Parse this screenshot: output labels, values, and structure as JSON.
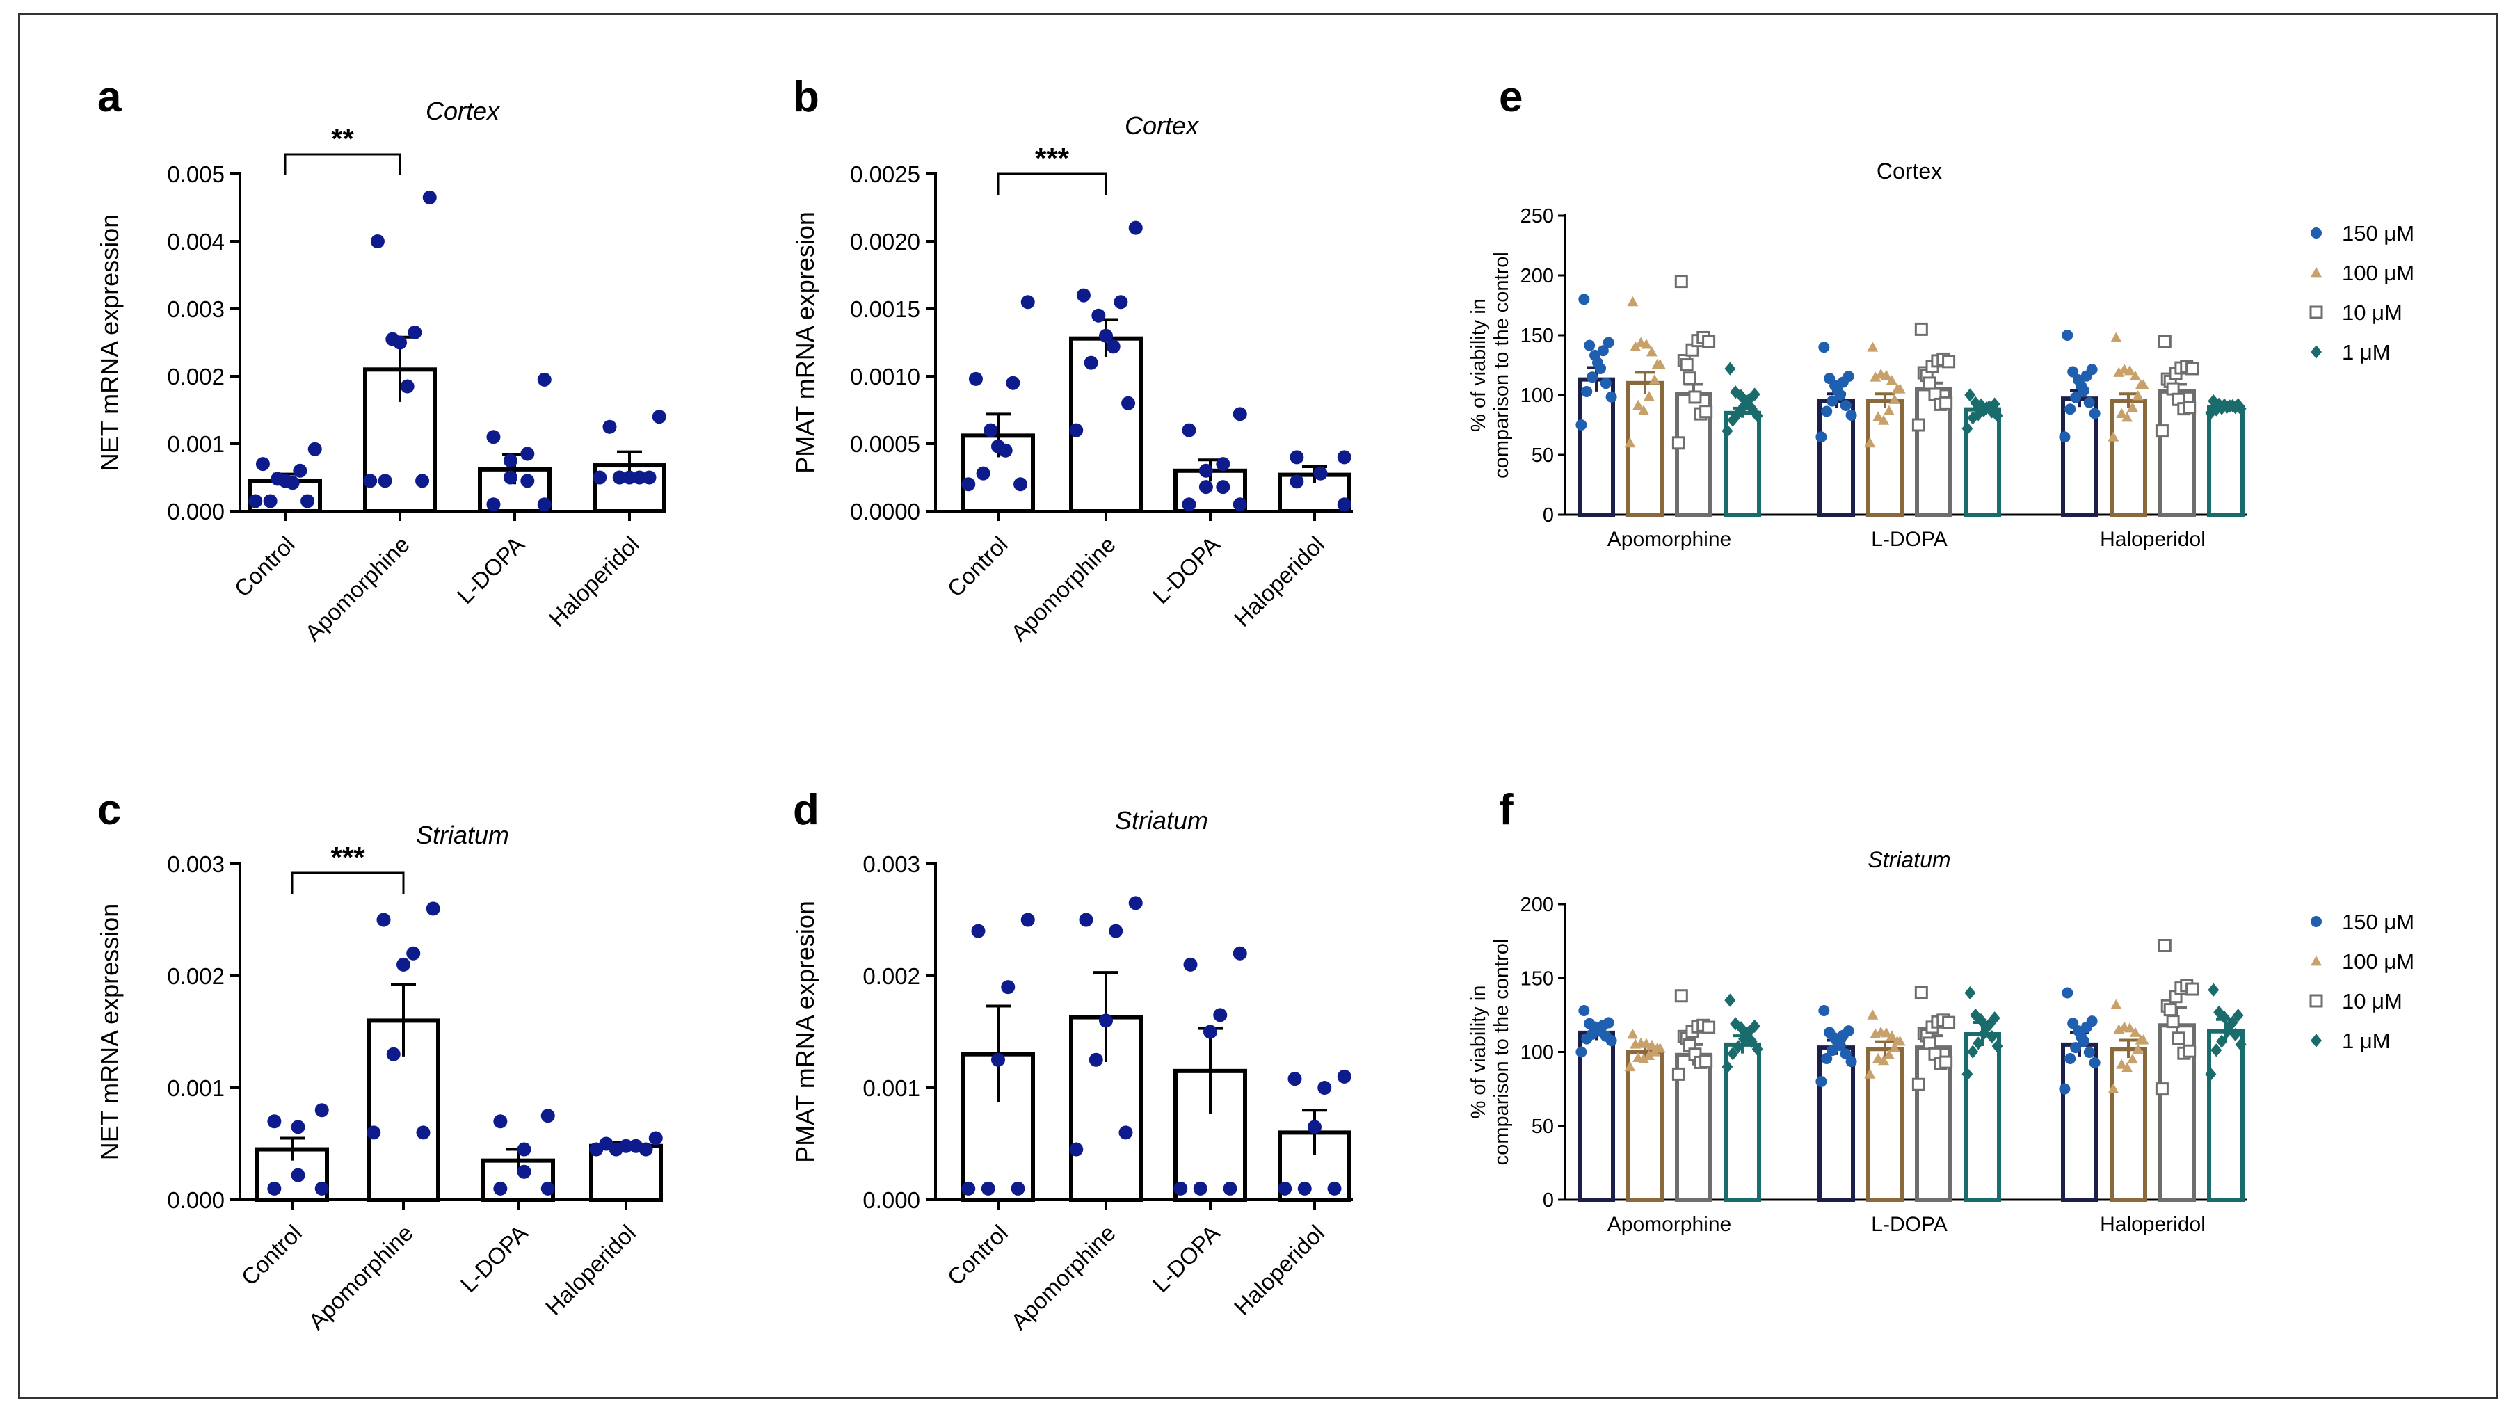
{
  "colors": {
    "dot": "#0d1b8c",
    "dose_150": "#1f5fb0",
    "dose_100": "#c8a06a",
    "dose_10": "#6e6e6e",
    "dose_1": "#1a6b6b",
    "bar_150": "#1b1f4a",
    "bar_100": "#8a6a3c",
    "bar_10": "#6e6e6e",
    "bar_1": "#1a6b6b"
  },
  "chart_data": [
    {
      "id": "a",
      "panel_label": "a",
      "type": "bar",
      "title": "Cortex",
      "ylabel": "NET mRNA expression",
      "ylim": [
        0,
        0.005
      ],
      "yticks": [
        "0.000",
        "0.001",
        "0.002",
        "0.003",
        "0.004",
        "0.005"
      ],
      "categories": [
        "Control",
        "Apomorphine",
        "L-DOPA",
        "Haloperidol"
      ],
      "means": [
        0.00045,
        0.0021,
        0.00062,
        0.00068
      ],
      "sems": [
        0.0001,
        0.00048,
        0.00022,
        0.0002
      ],
      "points": [
        [
          0.00092,
          0.0007,
          0.0006,
          0.00048,
          0.00045,
          0.00042,
          0.00015,
          0.00015,
          0.00015
        ],
        [
          0.00465,
          0.004,
          0.00265,
          0.00255,
          0.0025,
          0.00185,
          0.00045,
          0.00045,
          0.00045
        ],
        [
          0.00195,
          0.0011,
          0.00085,
          0.00075,
          0.0005,
          0.00045,
          0.0001,
          0.0001
        ],
        [
          0.0014,
          0.00125,
          0.0005,
          0.0005,
          0.0005,
          0.0005,
          0.0005
        ]
      ],
      "significance": {
        "from": 0,
        "to": 1,
        "label": "**"
      }
    },
    {
      "id": "b",
      "panel_label": "b",
      "type": "bar",
      "title": "Cortex",
      "ylabel": "PMAT mRNA expresion",
      "ylim": [
        0,
        0.0025
      ],
      "yticks": [
        "0.0000",
        "0.0005",
        "0.0010",
        "0.0015",
        "0.0020",
        "0.0025"
      ],
      "categories": [
        "Control",
        "Apomorphine",
        "L-DOPA",
        "Haloperidol"
      ],
      "means": [
        0.00056,
        0.00128,
        0.0003,
        0.00027
      ],
      "sems": [
        0.00016,
        0.00014,
        8e-05,
        6e-05
      ],
      "points": [
        [
          0.00155,
          0.00098,
          0.00095,
          0.0006,
          0.00048,
          0.00045,
          0.00028,
          0.0002,
          0.0002
        ],
        [
          0.0021,
          0.0016,
          0.00155,
          0.00145,
          0.0013,
          0.00122,
          0.0011,
          0.0008,
          0.0006
        ],
        [
          0.00072,
          0.0006,
          0.00035,
          0.0003,
          0.00018,
          0.00018,
          5e-05,
          5e-05
        ],
        [
          0.0004,
          0.0004,
          0.00028,
          0.00028,
          0.00022,
          5e-05
        ]
      ],
      "significance": {
        "from": 0,
        "to": 1,
        "label": "***"
      }
    },
    {
      "id": "c",
      "panel_label": "c",
      "type": "bar",
      "title": "Striatum",
      "ylabel": "NET mRNA expression",
      "ylim": [
        0,
        0.003
      ],
      "yticks": [
        "0.000",
        "0.001",
        "0.002",
        "0.003"
      ],
      "categories": [
        "Control",
        "Apomorphine",
        "L-DOPA",
        "Haloperidol"
      ],
      "means": [
        0.00045,
        0.0016,
        0.00035,
        0.00048
      ],
      "sems": [
        0.0001,
        0.00032,
        0.0001,
        3e-05
      ],
      "points": [
        [
          0.0008,
          0.0007,
          0.00065,
          0.00022,
          0.0001,
          0.0001
        ],
        [
          0.0026,
          0.0025,
          0.0022,
          0.0021,
          0.0013,
          0.0006,
          0.0006
        ],
        [
          0.00075,
          0.0007,
          0.00045,
          0.00025,
          0.0001,
          0.0001
        ],
        [
          0.00055,
          0.0005,
          0.00048,
          0.00048,
          0.00045,
          0.00045,
          0.00045
        ]
      ],
      "significance": {
        "from": 0,
        "to": 1,
        "label": "***"
      }
    },
    {
      "id": "d",
      "panel_label": "d",
      "type": "bar",
      "title": "Striatum",
      "ylabel": "PMAT mRNA expresion",
      "ylim": [
        0,
        0.003
      ],
      "yticks": [
        "0.000",
        "0.001",
        "0.002",
        "0.003"
      ],
      "categories": [
        "Control",
        "Apomorphine",
        "L-DOPA",
        "Haloperidol"
      ],
      "means": [
        0.0013,
        0.00163,
        0.00115,
        0.0006
      ],
      "sems": [
        0.00043,
        0.0004,
        0.00038,
        0.0002
      ],
      "points": [
        [
          0.0025,
          0.0024,
          0.0019,
          0.00125,
          0.0001,
          0.0001,
          0.0001
        ],
        [
          0.00265,
          0.0025,
          0.0024,
          0.0016,
          0.00125,
          0.0006,
          0.00045
        ],
        [
          0.0022,
          0.0021,
          0.00165,
          0.0015,
          0.0001,
          0.0001,
          0.0001
        ],
        [
          0.0011,
          0.00108,
          0.001,
          0.00065,
          0.0001,
          0.0001,
          0.0001
        ]
      ],
      "significance": null
    },
    {
      "id": "e",
      "panel_label": "e",
      "type": "bar",
      "title": "Cortex",
      "ylabel": [
        "% of viability in",
        "comparison to the control"
      ],
      "ylim": [
        0,
        250
      ],
      "yticks": [
        "0",
        "50",
        "100",
        "150",
        "200",
        "250"
      ],
      "groups": [
        "Apomorphine",
        "L-DOPA",
        "Haloperidol"
      ],
      "legend": [
        "150 μM",
        "100 μM",
        "10 μM",
        "1 μM"
      ],
      "means": [
        [
          113,
          110,
          101,
          85
        ],
        [
          95,
          95,
          105,
          88
        ],
        [
          97,
          95,
          103,
          90
        ]
      ],
      "sems": [
        [
          10,
          9,
          8,
          4
        ],
        [
          6,
          6,
          5,
          3
        ],
        [
          7,
          6,
          6,
          2
        ]
      ],
      "spreads": [
        [
          [
            75,
            180
          ],
          [
            60,
            178
          ],
          [
            60,
            195
          ],
          [
            70,
            122
          ]
        ],
        [
          [
            65,
            140
          ],
          [
            60,
            140
          ],
          [
            75,
            155
          ],
          [
            72,
            100
          ]
        ],
        [
          [
            65,
            150
          ],
          [
            65,
            148
          ],
          [
            70,
            145
          ],
          [
            85,
            95
          ]
        ]
      ]
    },
    {
      "id": "f",
      "panel_label": "f",
      "type": "bar",
      "title": "Striatum",
      "ylabel": [
        "% of viability in",
        "comparison to the control"
      ],
      "ylim": [
        0,
        200
      ],
      "yticks": [
        "0",
        "50",
        "100",
        "150",
        "200"
      ],
      "groups": [
        "Apomorphine",
        "L-DOPA",
        "Haloperidol"
      ],
      "legend": [
        "150 μM",
        "100 μM",
        "10 μM",
        "1 μM"
      ],
      "means": [
        [
          113,
          100,
          98,
          105
        ],
        [
          103,
          102,
          103,
          112
        ],
        [
          105,
          102,
          118,
          114
        ]
      ],
      "sems": [
        [
          5,
          4,
          7,
          6
        ],
        [
          5,
          5,
          8,
          8
        ],
        [
          8,
          6,
          12,
          8
        ]
      ],
      "spreads": [
        [
          [
            100,
            128
          ],
          [
            90,
            112
          ],
          [
            85,
            138
          ],
          [
            90,
            135
          ]
        ],
        [
          [
            80,
            128
          ],
          [
            85,
            125
          ],
          [
            78,
            140
          ],
          [
            85,
            140
          ]
        ],
        [
          [
            75,
            140
          ],
          [
            75,
            132
          ],
          [
            75,
            172
          ],
          [
            85,
            142
          ]
        ]
      ]
    }
  ]
}
